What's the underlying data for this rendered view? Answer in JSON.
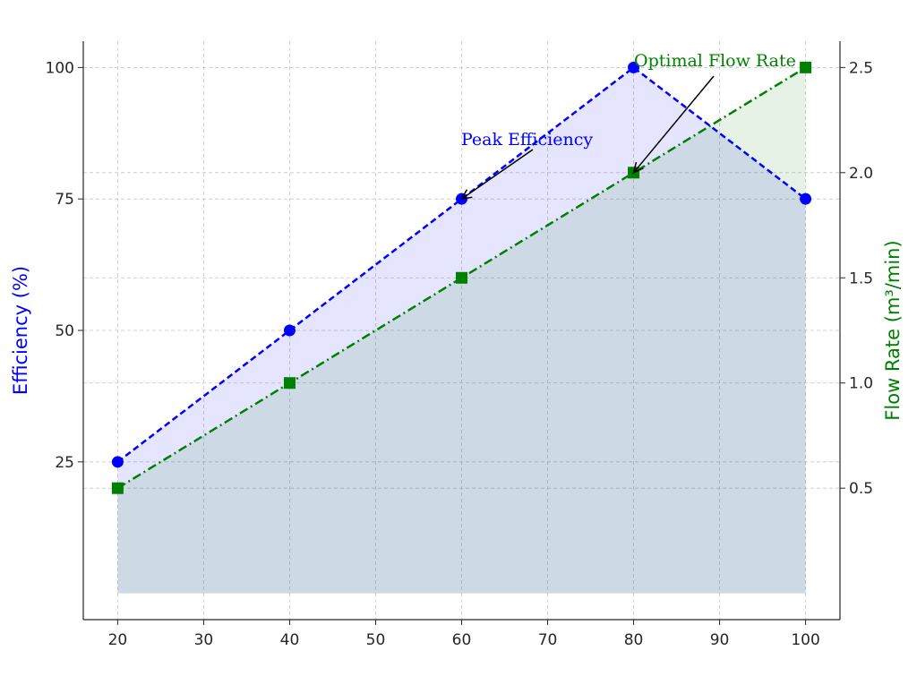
{
  "chart_data": {
    "type": "line",
    "x": [
      20,
      40,
      60,
      80,
      100
    ],
    "xlim": [
      16,
      104
    ],
    "xticks": [
      "20",
      "30",
      "40",
      "50",
      "60",
      "70",
      "80",
      "90",
      "100"
    ],
    "series": [
      {
        "axis": "left",
        "values": [
          25,
          50,
          75,
          100,
          75
        ],
        "color": "#0000ff",
        "line_style": "dashed",
        "marker": "circle",
        "fill": "area-to-zero"
      },
      {
        "axis": "right",
        "values": [
          0.5,
          1.0,
          1.5,
          2.0,
          2.5
        ],
        "color": "#008000",
        "line_style": "dash-dot",
        "marker": "square",
        "fill": "area-to-zero"
      }
    ],
    "y_left": {
      "label": "Efficiency (%)",
      "label_color": "#0000ff",
      "ylim": [
        -5,
        105
      ],
      "ticks": [
        "25",
        "50",
        "75",
        "100"
      ]
    },
    "y_right": {
      "label": "Flow Rate (m³/min)",
      "label_color": "#008000",
      "ylim": [
        -0.125,
        2.625
      ],
      "ticks": [
        "0.5",
        "1.0",
        "1.5",
        "2.0",
        "2.5"
      ]
    },
    "annotations": [
      {
        "text": "Peak Efficiency",
        "x": 60,
        "y": 75,
        "axis": "left",
        "color": "#0000ff"
      },
      {
        "text": "Optimal Flow Rate",
        "x": 80,
        "y": 2.0,
        "axis": "right",
        "color": "#008000"
      }
    ],
    "grid": true
  }
}
